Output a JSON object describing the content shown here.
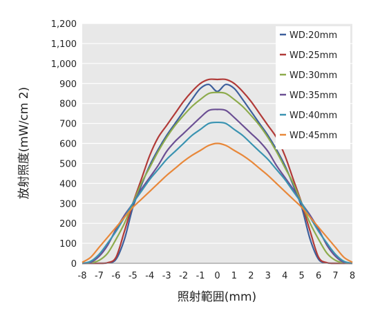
{
  "chart_data": {
    "type": "line",
    "title": "",
    "xlabel": "照射範囲(mm)",
    "ylabel": "放射照度(mW/cm 2)",
    "xlim": [
      -8,
      8
    ],
    "ylim": [
      0,
      1200
    ],
    "xticks": [
      -8,
      -7,
      -6,
      -5,
      -4,
      -3,
      -2,
      -1,
      0,
      1,
      2,
      3,
      4,
      5,
      6,
      7,
      8
    ],
    "yticks": [
      0,
      100,
      200,
      300,
      400,
      500,
      600,
      700,
      800,
      900,
      1000,
      1100,
      1200
    ],
    "ytick_labels": [
      "0",
      "100",
      "200",
      "300",
      "400",
      "500",
      "600",
      "700",
      "800",
      "900",
      "1,000",
      "1,100",
      "1,200"
    ],
    "grid": "horizontal",
    "legend_position": "top-right",
    "plot_background": "#e8e8e8",
    "series": [
      {
        "name": "WD:20mm",
        "color": "#3d5f9c",
        "points": [
          [
            -8,
            0
          ],
          [
            -7,
            0
          ],
          [
            -6.5,
            2
          ],
          [
            -6,
            20
          ],
          [
            -5.5,
            120
          ],
          [
            -5,
            280
          ],
          [
            -4.5,
            390
          ],
          [
            -4,
            490
          ],
          [
            -3.5,
            570
          ],
          [
            -3,
            640
          ],
          [
            -2.5,
            700
          ],
          [
            -2,
            760
          ],
          [
            -1.5,
            820
          ],
          [
            -1,
            875
          ],
          [
            -0.5,
            895
          ],
          [
            0,
            860
          ],
          [
            0.5,
            895
          ],
          [
            1,
            875
          ],
          [
            1.5,
            820
          ],
          [
            2,
            760
          ],
          [
            2.5,
            700
          ],
          [
            3,
            640
          ],
          [
            3.5,
            570
          ],
          [
            4,
            490
          ],
          [
            4.5,
            390
          ],
          [
            5,
            280
          ],
          [
            5.5,
            120
          ],
          [
            6,
            20
          ],
          [
            6.5,
            2
          ],
          [
            7,
            0
          ],
          [
            8,
            0
          ]
        ]
      },
      {
        "name": "WD:25mm",
        "color": "#b13a38",
        "points": [
          [
            -8,
            0
          ],
          [
            -7,
            0
          ],
          [
            -6.5,
            3
          ],
          [
            -6,
            30
          ],
          [
            -5.5,
            160
          ],
          [
            -5,
            300
          ],
          [
            -4.5,
            420
          ],
          [
            -4,
            540
          ],
          [
            -3.5,
            630
          ],
          [
            -3,
            690
          ],
          [
            -2.5,
            750
          ],
          [
            -2,
            810
          ],
          [
            -1.5,
            860
          ],
          [
            -1,
            900
          ],
          [
            -0.5,
            920
          ],
          [
            0,
            920
          ],
          [
            0.5,
            920
          ],
          [
            1,
            900
          ],
          [
            1.5,
            860
          ],
          [
            2,
            810
          ],
          [
            2.5,
            750
          ],
          [
            3,
            690
          ],
          [
            3.5,
            630
          ],
          [
            4,
            540
          ],
          [
            4.5,
            420
          ],
          [
            5,
            300
          ],
          [
            5.5,
            160
          ],
          [
            6,
            30
          ],
          [
            6.5,
            3
          ],
          [
            7,
            0
          ],
          [
            8,
            0
          ]
        ]
      },
      {
        "name": "WD:30mm",
        "color": "#8dab4c",
        "points": [
          [
            -8,
            0
          ],
          [
            -7.5,
            2
          ],
          [
            -7,
            15
          ],
          [
            -6.5,
            50
          ],
          [
            -6,
            120
          ],
          [
            -5.5,
            200
          ],
          [
            -5,
            300
          ],
          [
            -4.5,
            400
          ],
          [
            -4,
            480
          ],
          [
            -3.5,
            560
          ],
          [
            -3,
            630
          ],
          [
            -2.5,
            690
          ],
          [
            -2,
            740
          ],
          [
            -1.5,
            785
          ],
          [
            -1,
            820
          ],
          [
            -0.5,
            850
          ],
          [
            0,
            855
          ],
          [
            0.5,
            850
          ],
          [
            1,
            820
          ],
          [
            1.5,
            785
          ],
          [
            2,
            740
          ],
          [
            2.5,
            690
          ],
          [
            3,
            630
          ],
          [
            3.5,
            560
          ],
          [
            4,
            480
          ],
          [
            4.5,
            400
          ],
          [
            5,
            300
          ],
          [
            5.5,
            200
          ],
          [
            6,
            120
          ],
          [
            6.5,
            50
          ],
          [
            7,
            15
          ],
          [
            7.5,
            2
          ],
          [
            8,
            0
          ]
        ]
      },
      {
        "name": "WD:35mm",
        "color": "#6b4f93",
        "points": [
          [
            -8,
            0
          ],
          [
            -7.5,
            5
          ],
          [
            -7,
            35
          ],
          [
            -6.5,
            90
          ],
          [
            -6,
            170
          ],
          [
            -5.5,
            240
          ],
          [
            -5,
            300
          ],
          [
            -4.5,
            370
          ],
          [
            -4,
            430
          ],
          [
            -3.5,
            490
          ],
          [
            -3,
            560
          ],
          [
            -2.5,
            610
          ],
          [
            -2,
            650
          ],
          [
            -1.5,
            690
          ],
          [
            -1,
            730
          ],
          [
            -0.5,
            765
          ],
          [
            0,
            770
          ],
          [
            0.5,
            765
          ],
          [
            1,
            730
          ],
          [
            1.5,
            690
          ],
          [
            2,
            650
          ],
          [
            2.5,
            610
          ],
          [
            3,
            560
          ],
          [
            3.5,
            490
          ],
          [
            4,
            430
          ],
          [
            4.5,
            370
          ],
          [
            5,
            300
          ],
          [
            5.5,
            240
          ],
          [
            6,
            170
          ],
          [
            6.5,
            90
          ],
          [
            7,
            35
          ],
          [
            7.5,
            5
          ],
          [
            8,
            0
          ]
        ]
      },
      {
        "name": "WD:40mm",
        "color": "#3a93b1",
        "points": [
          [
            -8,
            0
          ],
          [
            -7.5,
            10
          ],
          [
            -7,
            45
          ],
          [
            -6.5,
            100
          ],
          [
            -6,
            160
          ],
          [
            -5.5,
            230
          ],
          [
            -5,
            300
          ],
          [
            -4.5,
            360
          ],
          [
            -4,
            420
          ],
          [
            -3.5,
            470
          ],
          [
            -3,
            520
          ],
          [
            -2.5,
            560
          ],
          [
            -2,
            600
          ],
          [
            -1.5,
            640
          ],
          [
            -1,
            670
          ],
          [
            -0.5,
            700
          ],
          [
            0,
            705
          ],
          [
            0.5,
            700
          ],
          [
            1,
            670
          ],
          [
            1.5,
            640
          ],
          [
            2,
            600
          ],
          [
            2.5,
            560
          ],
          [
            3,
            520
          ],
          [
            3.5,
            470
          ],
          [
            4,
            420
          ],
          [
            4.5,
            360
          ],
          [
            5,
            300
          ],
          [
            5.5,
            230
          ],
          [
            6,
            160
          ],
          [
            6.5,
            100
          ],
          [
            7,
            45
          ],
          [
            7.5,
            10
          ],
          [
            8,
            0
          ]
        ]
      },
      {
        "name": "WD:45mm",
        "color": "#e8883a",
        "points": [
          [
            -8,
            5
          ],
          [
            -7.5,
            30
          ],
          [
            -7,
            80
          ],
          [
            -6.5,
            130
          ],
          [
            -6,
            180
          ],
          [
            -5.5,
            230
          ],
          [
            -5,
            280
          ],
          [
            -4.5,
            320
          ],
          [
            -4,
            360
          ],
          [
            -3.5,
            400
          ],
          [
            -3,
            440
          ],
          [
            -2.5,
            475
          ],
          [
            -2,
            510
          ],
          [
            -1.5,
            540
          ],
          [
            -1,
            565
          ],
          [
            -0.5,
            590
          ],
          [
            0,
            600
          ],
          [
            0.5,
            590
          ],
          [
            1,
            565
          ],
          [
            1.5,
            540
          ],
          [
            2,
            510
          ],
          [
            2.5,
            475
          ],
          [
            3,
            440
          ],
          [
            3.5,
            400
          ],
          [
            4,
            360
          ],
          [
            4.5,
            320
          ],
          [
            5,
            280
          ],
          [
            5.5,
            230
          ],
          [
            6,
            180
          ],
          [
            6.5,
            130
          ],
          [
            7,
            80
          ],
          [
            7.5,
            30
          ],
          [
            8,
            5
          ]
        ]
      }
    ]
  }
}
